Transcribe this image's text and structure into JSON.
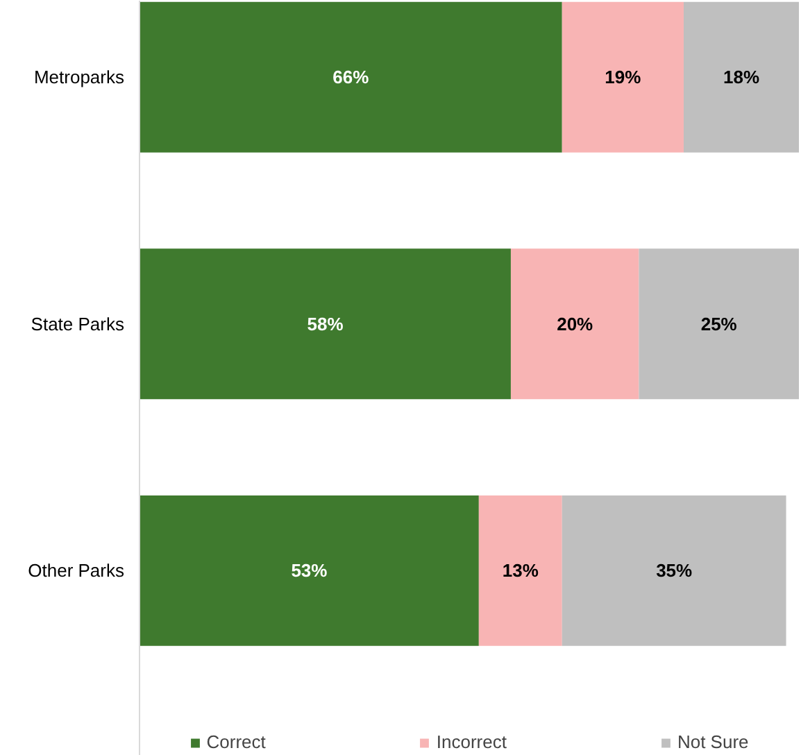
{
  "chart_data": {
    "type": "bar",
    "orientation": "horizontal",
    "stacked": true,
    "categories": [
      "Metroparks",
      "State Parks",
      "Other Parks"
    ],
    "series": [
      {
        "name": "Correct",
        "color": "#3f7a2e",
        "values": [
          66,
          58,
          53
        ],
        "value_labels": [
          "66%",
          "58%",
          "53%"
        ]
      },
      {
        "name": "Incorrect",
        "color": "#f8b4b4",
        "values": [
          19,
          20,
          13
        ],
        "value_labels": [
          "19%",
          "20%",
          "13%"
        ]
      },
      {
        "name": "Not Sure",
        "color": "#bfbfbf",
        "values": [
          18,
          25,
          35
        ],
        "value_labels": [
          "18%",
          "25%",
          "35%"
        ]
      }
    ],
    "legend": "bottom"
  }
}
